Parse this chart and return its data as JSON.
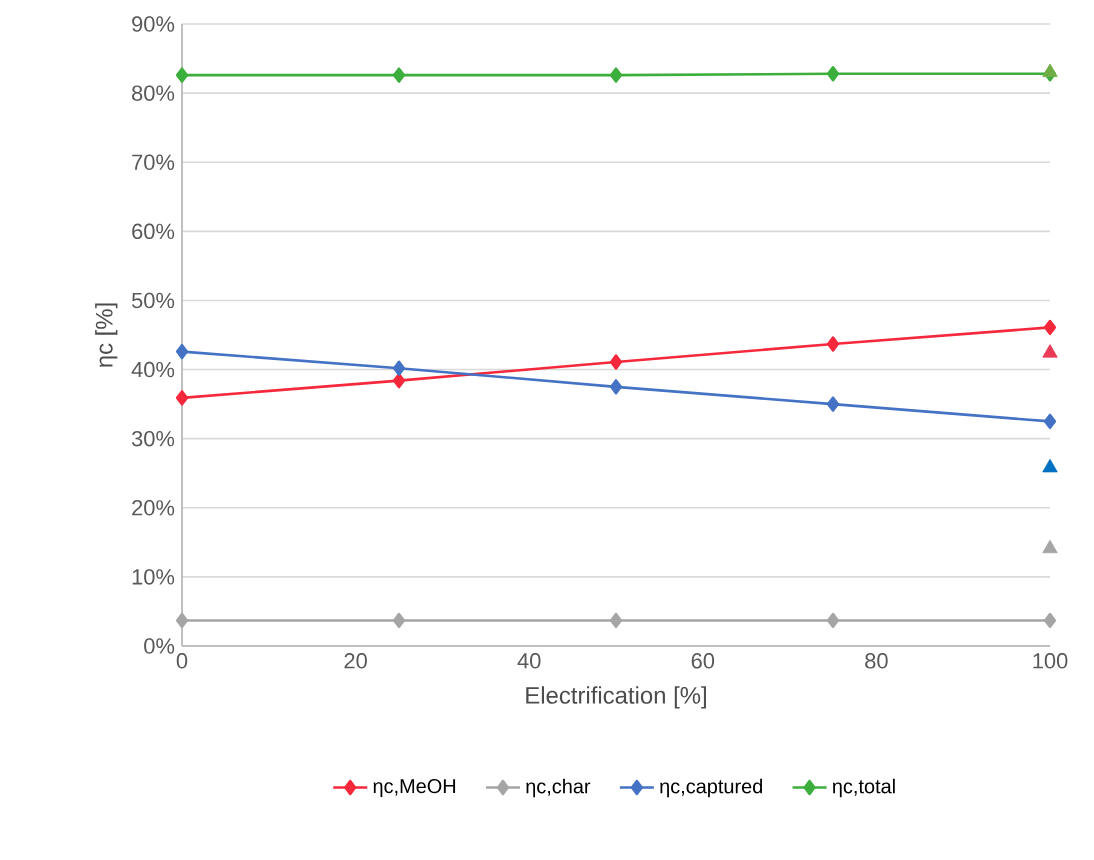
{
  "chart_data": {
    "type": "line",
    "xlabel": "Electrification [%]",
    "ylabel": "ηc [%]",
    "x": [
      0,
      25,
      50,
      75,
      100
    ],
    "xlim": [
      0,
      100
    ],
    "xticks": [
      0,
      20,
      40,
      60,
      80,
      100
    ],
    "ylim": [
      0,
      90
    ],
    "yticks": [
      {
        "value": 0,
        "label": "0%"
      },
      {
        "value": 10,
        "label": "10%"
      },
      {
        "value": 20,
        "label": "20%"
      },
      {
        "value": 30,
        "label": "30%"
      },
      {
        "value": 40,
        "label": "40%"
      },
      {
        "value": 50,
        "label": "50%"
      },
      {
        "value": 60,
        "label": "60%"
      },
      {
        "value": 70,
        "label": "70%"
      },
      {
        "value": 80,
        "label": "80%"
      },
      {
        "value": 90,
        "label": "90%"
      }
    ],
    "grid": "y",
    "legend": "bottom",
    "line_style": "solid",
    "series": [
      {
        "name": "ηc,MeOH",
        "color": "#f5283c",
        "marker": "diamond",
        "values": [
          35.9,
          38.4,
          41.1,
          43.7,
          46.1
        ]
      },
      {
        "name": "ηc,char",
        "color": "#a5a5a5",
        "marker": "diamond",
        "values": [
          3.7,
          3.7,
          3.7,
          3.7,
          3.7
        ]
      },
      {
        "name": "ηc,captured",
        "color": "#4472c4",
        "marker": "diamond",
        "values": [
          42.6,
          40.2,
          37.5,
          35.0,
          32.5
        ]
      },
      {
        "name": "ηc,total",
        "color": "#3cae3c",
        "marker": "diamond",
        "values": [
          82.6,
          82.6,
          82.6,
          82.8,
          82.8
        ]
      },
      {
        "type": "scatter",
        "color": "#ea3a55",
        "marker": "triangle",
        "values": [
          null,
          null,
          null,
          null,
          42.4
        ]
      },
      {
        "type": "scatter",
        "color": "#0070c0",
        "marker": "triangle",
        "values": [
          null,
          null,
          null,
          null,
          25.8
        ]
      },
      {
        "type": "scatter",
        "color": "#a5a5a5",
        "marker": "triangle",
        "values": [
          null,
          null,
          null,
          null,
          14.1
        ]
      },
      {
        "type": "scatter",
        "color": "#70ad47",
        "marker": "triangle",
        "values": [
          null,
          null,
          null,
          null,
          83.0
        ]
      }
    ]
  }
}
